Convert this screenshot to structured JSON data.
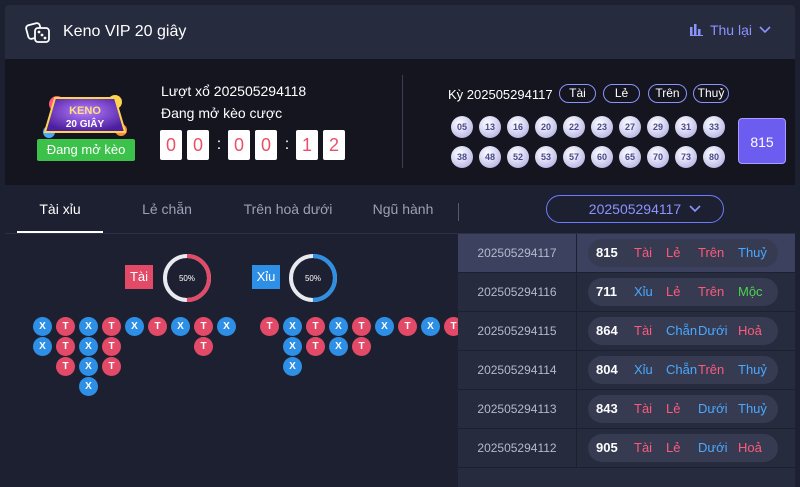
{
  "header": {
    "title": "Keno VIP 20 giây",
    "history_label": "Thu lại"
  },
  "colors": {
    "tai": "#e24a68",
    "xiu": "#2d8fe6",
    "accent": "#8b93ff",
    "status": "#3cc24b",
    "total_box": "#6d5cf0"
  },
  "info": {
    "logo_text_1": "KENO",
    "logo_text_2": "20 GIÂY",
    "status": "Đang mở kèo",
    "draw_label": "Lượt xổ 202505294118",
    "open_label": "Đang mở kèo cược",
    "timer": [
      "0",
      "0",
      "0",
      "0",
      "1",
      "2"
    ]
  },
  "last_result": {
    "period_label": "Kỳ 202505294117",
    "tags": [
      "Tài",
      "Lẻ",
      "Trên",
      "Thuỷ"
    ],
    "balls": [
      "05",
      "13",
      "16",
      "20",
      "22",
      "23",
      "27",
      "29",
      "31",
      "33",
      "38",
      "48",
      "52",
      "53",
      "57",
      "60",
      "65",
      "70",
      "73",
      "80"
    ],
    "total": "815"
  },
  "tabs": [
    "Tài xỉu",
    "Lẻ chẵn",
    "Trên hoà dưới",
    "Ngũ hành"
  ],
  "period_select": "202505294117",
  "stats": {
    "tai_label": "Tài",
    "xiu_label": "Xỉu",
    "tai_pct": "50%",
    "xiu_pct": "50%",
    "tai_fraction": 0.5,
    "xiu_fraction": 0.5
  },
  "bead_road_1": [
    [
      "X",
      "X"
    ],
    [
      "T",
      "T",
      "T"
    ],
    [
      "X",
      "X",
      "X",
      "X"
    ],
    [
      "T",
      "T",
      "T"
    ],
    [
      "X"
    ],
    [
      "T"
    ],
    [
      "X"
    ],
    [
      "T",
      "T"
    ],
    [
      "X"
    ]
  ],
  "bead_road_2": [
    [
      "T"
    ],
    [
      "X",
      "X",
      "X"
    ],
    [
      "T",
      "T"
    ],
    [
      "X",
      "X"
    ],
    [
      "T",
      "T"
    ],
    [
      "X"
    ],
    [
      "T"
    ],
    [
      "X"
    ],
    [
      "T"
    ]
  ],
  "history": [
    {
      "id": "202505294117",
      "total": "815",
      "a": "Tài",
      "b": "Lẻ",
      "c": "Trên",
      "d": "Thuỷ",
      "ca": "red",
      "cb": "red",
      "cc": "red",
      "cd": "blue",
      "selected": true
    },
    {
      "id": "202505294116",
      "total": "711",
      "a": "Xỉu",
      "b": "Lẻ",
      "c": "Trên",
      "d": "Mộc",
      "ca": "blue",
      "cb": "red",
      "cc": "red",
      "cd": "green",
      "selected": false
    },
    {
      "id": "202505294115",
      "total": "864",
      "a": "Tài",
      "b": "Chẵn",
      "c": "Dưới",
      "d": "Hoả",
      "ca": "red",
      "cb": "blue",
      "cc": "blue",
      "cd": "red",
      "selected": false
    },
    {
      "id": "202505294114",
      "total": "804",
      "a": "Xỉu",
      "b": "Chẵn",
      "c": "Trên",
      "d": "Thuỷ",
      "ca": "blue",
      "cb": "blue",
      "cc": "red",
      "cd": "blue",
      "selected": false
    },
    {
      "id": "202505294113",
      "total": "843",
      "a": "Tài",
      "b": "Lẻ",
      "c": "Dưới",
      "d": "Thuỷ",
      "ca": "red",
      "cb": "red",
      "cc": "blue",
      "cd": "blue",
      "selected": false
    },
    {
      "id": "202505294112",
      "total": "905",
      "a": "Tài",
      "b": "Lẻ",
      "c": "Dưới",
      "d": "Hoả",
      "ca": "red",
      "cb": "red",
      "cc": "blue",
      "cd": "red",
      "selected": false
    }
  ]
}
